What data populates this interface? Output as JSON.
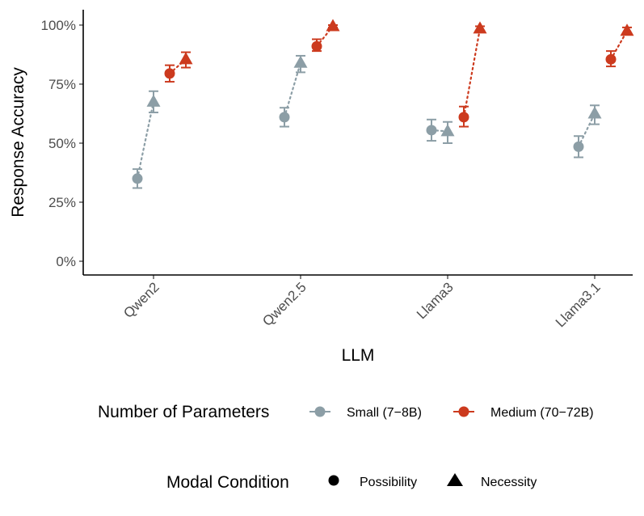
{
  "chart_data": {
    "type": "scatter",
    "xlabel": "LLM",
    "ylabel": "Response Accuracy",
    "categories": [
      "Qwen2",
      "Qwen2.5",
      "Llama3",
      "Llama3.1"
    ],
    "y_ticks": [
      "0%",
      "25%",
      "50%",
      "75%",
      "100%"
    ],
    "ylim": [
      0,
      100
    ],
    "series": [
      {
        "name": "Small (7-8B)",
        "color": "#8C9EA6",
        "points": {
          "Possibility": [
            {
              "category": "Qwen2",
              "y": 35,
              "lo": 31,
              "hi": 39
            },
            {
              "category": "Qwen2.5",
              "y": 61,
              "lo": 57,
              "hi": 65
            },
            {
              "category": "Llama3",
              "y": 55.5,
              "lo": 51,
              "hi": 60
            },
            {
              "category": "Llama3.1",
              "y": 48.5,
              "lo": 44,
              "hi": 53
            }
          ],
          "Necessity": [
            {
              "category": "Qwen2",
              "y": 67.5,
              "lo": 63,
              "hi": 72
            },
            {
              "category": "Qwen2.5",
              "y": 84,
              "lo": 80,
              "hi": 87
            },
            {
              "category": "Llama3",
              "y": 55,
              "lo": 50,
              "hi": 59
            },
            {
              "category": "Llama3.1",
              "y": 62.5,
              "lo": 58,
              "hi": 66
            }
          ]
        }
      },
      {
        "name": "Medium (70-72B)",
        "color": "#CC3A1E",
        "points": {
          "Possibility": [
            {
              "category": "Qwen2",
              "y": 79.5,
              "lo": 76,
              "hi": 83
            },
            {
              "category": "Qwen2.5",
              "y": 91,
              "lo": 89,
              "hi": 94
            },
            {
              "category": "Llama3",
              "y": 61,
              "lo": 57,
              "hi": 65.5
            },
            {
              "category": "Llama3.1",
              "y": 85.5,
              "lo": 82.5,
              "hi": 89
            }
          ],
          "Necessity": [
            {
              "category": "Qwen2",
              "y": 85.5,
              "lo": 82,
              "hi": 88.5
            },
            {
              "category": "Qwen2.5",
              "y": 99.5,
              "lo": 99,
              "hi": 100
            },
            {
              "category": "Llama3",
              "y": 98.5,
              "lo": 97.5,
              "hi": 99.5
            },
            {
              "category": "Llama3.1",
              "y": 97.5,
              "lo": 96,
              "hi": 99
            }
          ]
        }
      }
    ],
    "legend": {
      "size_title": "Number of Parameters",
      "size_items": [
        "Small (7−8B)",
        "Medium (70−72B)"
      ],
      "modal_title": "Modal Condition",
      "modal_items": [
        "Possibility",
        "Necessity"
      ],
      "placement": "bottom"
    }
  }
}
